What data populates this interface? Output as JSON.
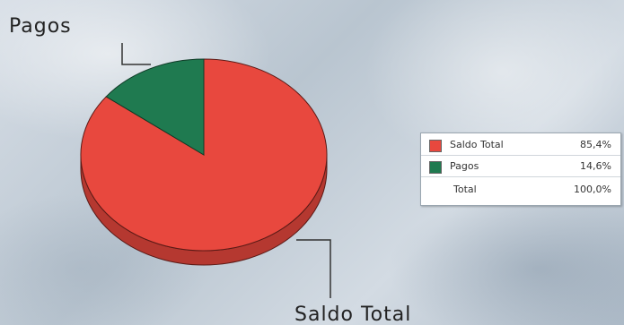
{
  "chart_data": {
    "type": "pie",
    "style": "3d",
    "slices": [
      {
        "name": "Saldo Total",
        "label": "Saldo Total",
        "value": 85.4,
        "percent_label": "85,4%",
        "color": "#e8483e"
      },
      {
        "name": "Pagos",
        "label": "Pagos",
        "value": 14.6,
        "percent_label": "14,6%",
        "color": "#1f7a50"
      }
    ],
    "total": {
      "label": "Total",
      "value": 100.0,
      "percent_label": "100,0%"
    },
    "legend_placement": "right"
  }
}
